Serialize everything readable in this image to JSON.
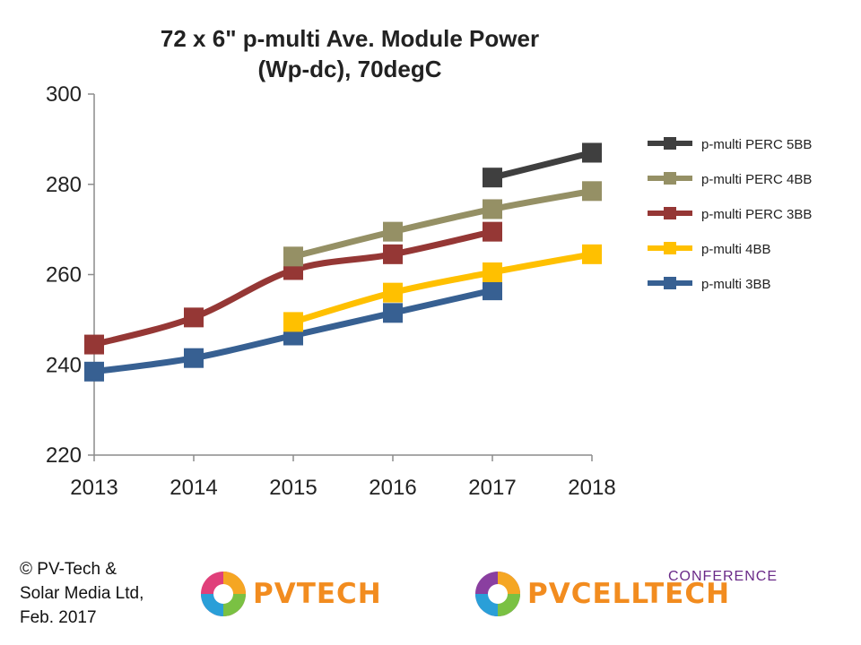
{
  "chart_data": {
    "type": "line",
    "title_line1": "72 x 6\" p-multi Ave. Module Power",
    "title_line2": "(Wp-dc), 70degC",
    "x": [
      "2013",
      "2014",
      "2015",
      "2016",
      "2017",
      "2018"
    ],
    "ylim": [
      220,
      300
    ],
    "yticks": [
      "220",
      "240",
      "260",
      "280",
      "300"
    ],
    "grid": false,
    "legend_position": "right",
    "series": [
      {
        "name": "p-multi PERC 5BB",
        "color": "#3f3f3f",
        "values": [
          null,
          null,
          null,
          null,
          281.5,
          287
        ]
      },
      {
        "name": "p-multi PERC 4BB",
        "color": "#959065",
        "values": [
          null,
          null,
          264,
          269.5,
          274.5,
          278.5
        ]
      },
      {
        "name": "p-multi PERC 3BB",
        "color": "#953735",
        "values": [
          244.5,
          250.5,
          261,
          264.5,
          269.5,
          null
        ]
      },
      {
        "name": "p-multi 4BB",
        "color": "#ffc000",
        "values": [
          null,
          null,
          249.5,
          256,
          260.5,
          264.5
        ]
      },
      {
        "name": "p-multi 3BB",
        "color": "#376092",
        "values": [
          238.5,
          241.5,
          246.5,
          251.5,
          256.5,
          null
        ]
      }
    ]
  },
  "footer": {
    "copyright_line1": "© PV-Tech &",
    "copyright_line2": "Solar Media Ltd,",
    "copyright_line3": "Feb. 2017",
    "logo1_text": "PVTECH",
    "logo2_text": "PVCELLTECH",
    "logo2_conference": "CONFERENCE"
  }
}
